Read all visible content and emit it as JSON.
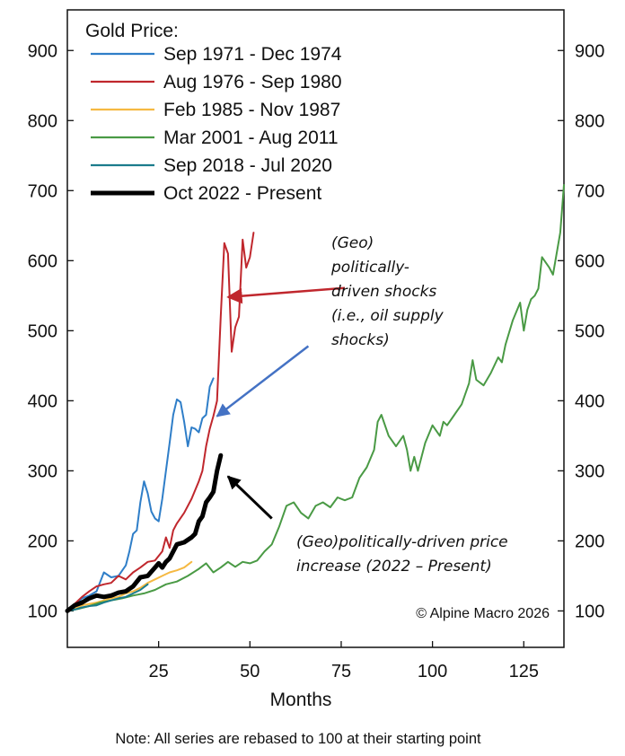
{
  "chart_data": {
    "type": "line",
    "title": "",
    "xlabel": "Months",
    "ylabel": "",
    "xlim": [
      0,
      136
    ],
    "ylim": [
      48,
      958
    ],
    "x_ticks": [
      25,
      50,
      75,
      100,
      125
    ],
    "y_ticks": [
      100,
      200,
      300,
      400,
      500,
      600,
      700,
      800,
      900
    ],
    "grid": false,
    "legend": {
      "title": "Gold Price:",
      "position": "top-left"
    },
    "series": [
      {
        "name": "Sep 1971 - Dec 1974",
        "color": "#2f7ec8",
        "points": [
          [
            0,
            100
          ],
          [
            2,
            108
          ],
          [
            4,
            118
          ],
          [
            6,
            122
          ],
          [
            8,
            128
          ],
          [
            10,
            155
          ],
          [
            12,
            148
          ],
          [
            14,
            150
          ],
          [
            16,
            165
          ],
          [
            17,
            185
          ],
          [
            18,
            210
          ],
          [
            19,
            215
          ],
          [
            20,
            255
          ],
          [
            21,
            285
          ],
          [
            22,
            268
          ],
          [
            23,
            242
          ],
          [
            24,
            232
          ],
          [
            25,
            228
          ],
          [
            26,
            260
          ],
          [
            27,
            300
          ],
          [
            28,
            340
          ],
          [
            29,
            380
          ],
          [
            30,
            402
          ],
          [
            31,
            398
          ],
          [
            32,
            370
          ],
          [
            33,
            335
          ],
          [
            34,
            362
          ],
          [
            35,
            360
          ],
          [
            36,
            355
          ],
          [
            37,
            375
          ],
          [
            38,
            380
          ],
          [
            39,
            420
          ],
          [
            40,
            432
          ]
        ]
      },
      {
        "name": "Aug 1976 - Sep 1980",
        "color": "#c0272d",
        "points": [
          [
            0,
            100
          ],
          [
            2,
            110
          ],
          [
            4,
            120
          ],
          [
            6,
            128
          ],
          [
            8,
            135
          ],
          [
            10,
            138
          ],
          [
            12,
            140
          ],
          [
            14,
            150
          ],
          [
            16,
            145
          ],
          [
            18,
            155
          ],
          [
            20,
            162
          ],
          [
            22,
            170
          ],
          [
            24,
            172
          ],
          [
            26,
            185
          ],
          [
            27,
            205
          ],
          [
            28,
            190
          ],
          [
            29,
            215
          ],
          [
            30,
            225
          ],
          [
            32,
            240
          ],
          [
            34,
            260
          ],
          [
            36,
            285
          ],
          [
            37,
            300
          ],
          [
            38,
            335
          ],
          [
            39,
            360
          ],
          [
            40,
            378
          ],
          [
            41,
            400
          ],
          [
            42,
            520
          ],
          [
            43,
            625
          ],
          [
            44,
            610
          ],
          [
            45,
            470
          ],
          [
            46,
            505
          ],
          [
            47,
            520
          ],
          [
            48,
            630
          ],
          [
            49,
            590
          ],
          [
            50,
            605
          ],
          [
            51,
            640
          ]
        ]
      },
      {
        "name": "Feb 1985 - Nov 1987",
        "color": "#f5b942",
        "points": [
          [
            0,
            100
          ],
          [
            2,
            103
          ],
          [
            4,
            108
          ],
          [
            6,
            110
          ],
          [
            8,
            112
          ],
          [
            10,
            115
          ],
          [
            12,
            118
          ],
          [
            14,
            120
          ],
          [
            16,
            125
          ],
          [
            18,
            128
          ],
          [
            20,
            133
          ],
          [
            22,
            140
          ],
          [
            24,
            145
          ],
          [
            26,
            150
          ],
          [
            28,
            155
          ],
          [
            30,
            158
          ],
          [
            32,
            162
          ],
          [
            34,
            170
          ]
        ]
      },
      {
        "name": "Mar 2001 - Aug 2011",
        "color": "#4a9a45",
        "points": [
          [
            0,
            100
          ],
          [
            3,
            103
          ],
          [
            6,
            107
          ],
          [
            9,
            112
          ],
          [
            12,
            115
          ],
          [
            15,
            118
          ],
          [
            18,
            122
          ],
          [
            21,
            125
          ],
          [
            24,
            130
          ],
          [
            27,
            138
          ],
          [
            30,
            142
          ],
          [
            33,
            150
          ],
          [
            36,
            160
          ],
          [
            38,
            168
          ],
          [
            40,
            155
          ],
          [
            42,
            162
          ],
          [
            44,
            170
          ],
          [
            46,
            163
          ],
          [
            48,
            170
          ],
          [
            50,
            168
          ],
          [
            52,
            172
          ],
          [
            54,
            185
          ],
          [
            56,
            195
          ],
          [
            58,
            220
          ],
          [
            60,
            250
          ],
          [
            62,
            255
          ],
          [
            64,
            240
          ],
          [
            66,
            232
          ],
          [
            68,
            250
          ],
          [
            70,
            255
          ],
          [
            72,
            248
          ],
          [
            74,
            262
          ],
          [
            76,
            258
          ],
          [
            78,
            262
          ],
          [
            80,
            290
          ],
          [
            82,
            305
          ],
          [
            84,
            330
          ],
          [
            85,
            370
          ],
          [
            86,
            380
          ],
          [
            88,
            350
          ],
          [
            90,
            335
          ],
          [
            92,
            350
          ],
          [
            93,
            330
          ],
          [
            94,
            300
          ],
          [
            95,
            320
          ],
          [
            96,
            300
          ],
          [
            98,
            340
          ],
          [
            100,
            365
          ],
          [
            102,
            350
          ],
          [
            103,
            370
          ],
          [
            104,
            365
          ],
          [
            106,
            380
          ],
          [
            108,
            395
          ],
          [
            110,
            425
          ],
          [
            111,
            458
          ],
          [
            112,
            430
          ],
          [
            114,
            422
          ],
          [
            116,
            440
          ],
          [
            118,
            462
          ],
          [
            119,
            455
          ],
          [
            120,
            480
          ],
          [
            122,
            515
          ],
          [
            124,
            540
          ],
          [
            125,
            500
          ],
          [
            126,
            530
          ],
          [
            127,
            545
          ],
          [
            128,
            550
          ],
          [
            129,
            560
          ],
          [
            130,
            605
          ],
          [
            132,
            590
          ],
          [
            133,
            580
          ],
          [
            135,
            640
          ],
          [
            136,
            708
          ]
        ]
      },
      {
        "name": "Sep 2018 - Jul 2020",
        "color": "#1b7c8c",
        "points": [
          [
            0,
            100
          ],
          [
            2,
            102
          ],
          [
            4,
            105
          ],
          [
            6,
            107
          ],
          [
            8,
            108
          ],
          [
            10,
            112
          ],
          [
            12,
            115
          ],
          [
            14,
            118
          ],
          [
            16,
            120
          ],
          [
            18,
            125
          ],
          [
            20,
            130
          ],
          [
            22,
            138
          ]
        ]
      },
      {
        "name": "Oct 2022 - Present",
        "color": "#000000",
        "points": [
          [
            0,
            100
          ],
          [
            2,
            108
          ],
          [
            4,
            112
          ],
          [
            6,
            118
          ],
          [
            8,
            122
          ],
          [
            10,
            120
          ],
          [
            12,
            122
          ],
          [
            14,
            126
          ],
          [
            16,
            128
          ],
          [
            18,
            135
          ],
          [
            20,
            148
          ],
          [
            22,
            150
          ],
          [
            24,
            162
          ],
          [
            25,
            168
          ],
          [
            26,
            162
          ],
          [
            27,
            170
          ],
          [
            28,
            175
          ],
          [
            30,
            195
          ],
          [
            32,
            198
          ],
          [
            34,
            205
          ],
          [
            35,
            210
          ],
          [
            36,
            228
          ],
          [
            37,
            235
          ],
          [
            38,
            255
          ],
          [
            39,
            262
          ],
          [
            40,
            270
          ],
          [
            41,
            300
          ],
          [
            42,
            322
          ]
        ]
      }
    ],
    "annotations": [
      {
        "lines": [
          "(Geo)",
          "politically-",
          "driven shocks",
          "(i.e., oil supply",
          "shocks)"
        ],
        "color": "#000000"
      },
      {
        "lines": [
          "(Geo)politically-driven price",
          "increase (2022 – Present)"
        ],
        "color": "#000000"
      }
    ],
    "arrows": [
      {
        "color": "#c0272d",
        "from": [
          76,
          561
        ],
        "to": [
          44,
          548
        ]
      },
      {
        "color": "#4472c4",
        "from": [
          66,
          478
        ],
        "to": [
          41,
          378
        ]
      },
      {
        "color": "#000000",
        "from": [
          56,
          232
        ],
        "to": [
          44,
          292
        ]
      }
    ],
    "copyright": "© Alpine Macro 2026",
    "note": "Note: All series are rebased to 100 at their starting point"
  }
}
